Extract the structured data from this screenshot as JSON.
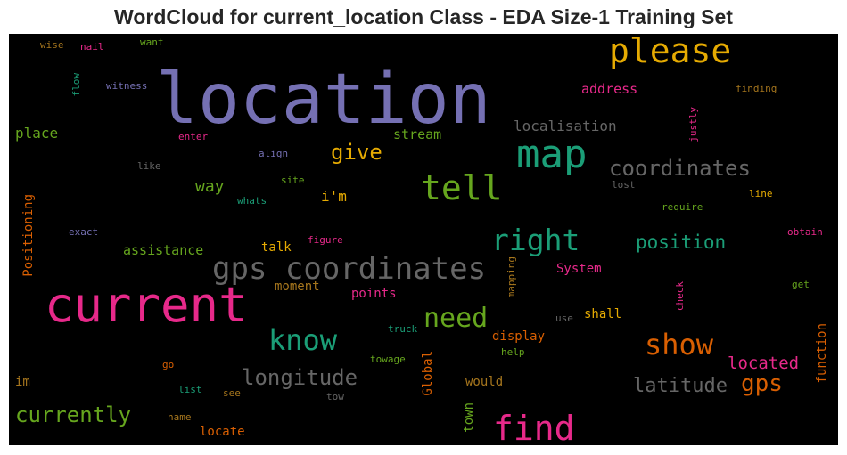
{
  "title": "WordCloud for current_location Class - EDA Size-1 Training Set",
  "colors": {
    "purple": "#7570b3",
    "magenta": "#e7298a",
    "teal": "#1b9e77",
    "green": "#66a61e",
    "gold": "#e6ab02",
    "orange": "#d95f02",
    "brown": "#a6761d",
    "gray": "#666666"
  },
  "chart_data": {
    "type": "wordcloud",
    "words": [
      {
        "text": "location",
        "color": "purple"
      },
      {
        "text": "current",
        "color": "magenta"
      },
      {
        "text": "please",
        "color": "gold"
      },
      {
        "text": "map",
        "color": "teal"
      },
      {
        "text": "tell",
        "color": "green"
      },
      {
        "text": "gps coordinates",
        "color": "gray"
      },
      {
        "text": "find",
        "color": "magenta"
      },
      {
        "text": "right",
        "color": "teal"
      },
      {
        "text": "know",
        "color": "teal"
      },
      {
        "text": "show",
        "color": "orange"
      },
      {
        "text": "need",
        "color": "green"
      },
      {
        "text": "coordinates",
        "color": "gray"
      },
      {
        "text": "currently",
        "color": "green"
      },
      {
        "text": "longitude",
        "color": "gray"
      },
      {
        "text": "latitude",
        "color": "gray"
      },
      {
        "text": "gps",
        "color": "orange"
      },
      {
        "text": "position",
        "color": "teal"
      },
      {
        "text": "located",
        "color": "magenta"
      },
      {
        "text": "give",
        "color": "gold"
      },
      {
        "text": "way",
        "color": "green"
      },
      {
        "text": "localisation",
        "color": "gray"
      },
      {
        "text": "address",
        "color": "magenta"
      },
      {
        "text": "stream",
        "color": "green"
      },
      {
        "text": "place",
        "color": "green"
      },
      {
        "text": "i'm",
        "color": "gold"
      },
      {
        "text": "assistance",
        "color": "green"
      },
      {
        "text": "talk",
        "color": "gold"
      },
      {
        "text": "moment",
        "color": "brown"
      },
      {
        "text": "points",
        "color": "magenta"
      },
      {
        "text": "System",
        "color": "magenta"
      },
      {
        "text": "display",
        "color": "orange"
      },
      {
        "text": "shall",
        "color": "gold"
      },
      {
        "text": "function",
        "color": "orange"
      },
      {
        "text": "Positioning",
        "color": "orange"
      },
      {
        "text": "Global",
        "color": "orange"
      },
      {
        "text": "town",
        "color": "green"
      },
      {
        "text": "would",
        "color": "brown"
      },
      {
        "text": "locate",
        "color": "orange"
      },
      {
        "text": "im",
        "color": "brown"
      },
      {
        "text": "witness",
        "color": "purple"
      },
      {
        "text": "flow",
        "color": "teal"
      },
      {
        "text": "wise",
        "color": "brown"
      },
      {
        "text": "nail",
        "color": "magenta"
      },
      {
        "text": "want",
        "color": "green"
      },
      {
        "text": "finding",
        "color": "brown"
      },
      {
        "text": "justly",
        "color": "magenta"
      },
      {
        "text": "enter",
        "color": "magenta"
      },
      {
        "text": "align",
        "color": "purple"
      },
      {
        "text": "like",
        "color": "gray"
      },
      {
        "text": "site",
        "color": "green"
      },
      {
        "text": "whats",
        "color": "teal"
      },
      {
        "text": "lost",
        "color": "gray"
      },
      {
        "text": "line",
        "color": "gold"
      },
      {
        "text": "require",
        "color": "green"
      },
      {
        "text": "exact",
        "color": "purple"
      },
      {
        "text": "figure",
        "color": "magenta"
      },
      {
        "text": "obtain",
        "color": "magenta"
      },
      {
        "text": "mapping",
        "color": "brown"
      },
      {
        "text": "check",
        "color": "magenta"
      },
      {
        "text": "get",
        "color": "green"
      },
      {
        "text": "use",
        "color": "gray"
      },
      {
        "text": "truck",
        "color": "teal"
      },
      {
        "text": "towage",
        "color": "green"
      },
      {
        "text": "help",
        "color": "green"
      },
      {
        "text": "go",
        "color": "orange"
      },
      {
        "text": "list",
        "color": "teal"
      },
      {
        "text": "see",
        "color": "brown"
      },
      {
        "text": "tow",
        "color": "gray"
      },
      {
        "text": "name",
        "color": "brown"
      }
    ]
  }
}
